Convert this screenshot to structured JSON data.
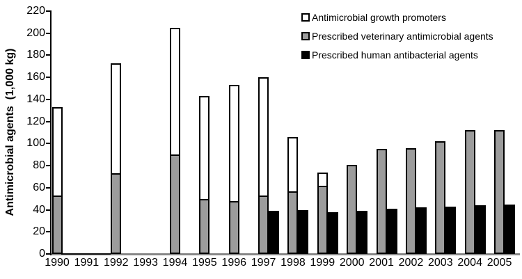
{
  "chart_data": {
    "type": "bar",
    "variant": "stacked-and-grouped",
    "title": "",
    "xlabel": "",
    "ylabel": "Antimicrobial agents  (1,000 kg)",
    "ylim": [
      0,
      220
    ],
    "ytick_step": 20,
    "yticks": [
      0,
      20,
      40,
      60,
      80,
      100,
      120,
      140,
      160,
      180,
      200,
      220
    ],
    "grid": false,
    "legend_position": "top-right",
    "categories": [
      "1990",
      "1991",
      "1992",
      "1993",
      "1994",
      "1995",
      "1996",
      "1997",
      "1998",
      "1999",
      "2000",
      "2001",
      "2002",
      "2003",
      "2004",
      "2005"
    ],
    "series": [
      {
        "name": "Antimicrobial growth promoters",
        "color": "#ffffff",
        "stacked_on": "Prescribed veterinary antimicrobial agents",
        "values": [
          80,
          0,
          100,
          0,
          115,
          93,
          105,
          107,
          49,
          12,
          0,
          0,
          0,
          0,
          0,
          0
        ]
      },
      {
        "name": "Prescribed veterinary antimicrobial agents",
        "color": "#9c9c9c",
        "stacked_on": null,
        "values": [
          53,
          0,
          73,
          0,
          90,
          50,
          48,
          53,
          57,
          62,
          81,
          95,
          96,
          102,
          112,
          112
        ]
      },
      {
        "name": "Prescribed human antibacterial agents",
        "color": "#000000",
        "stacked_on": null,
        "values": [
          0,
          0,
          0,
          0,
          0,
          0,
          0,
          39,
          40,
          38,
          39,
          41,
          42,
          43,
          44,
          45
        ]
      }
    ],
    "stacked_totals": [
      133,
      0,
      173,
      0,
      205,
      143,
      153,
      160,
      106,
      74,
      81,
      95,
      96,
      102,
      112,
      112
    ]
  }
}
